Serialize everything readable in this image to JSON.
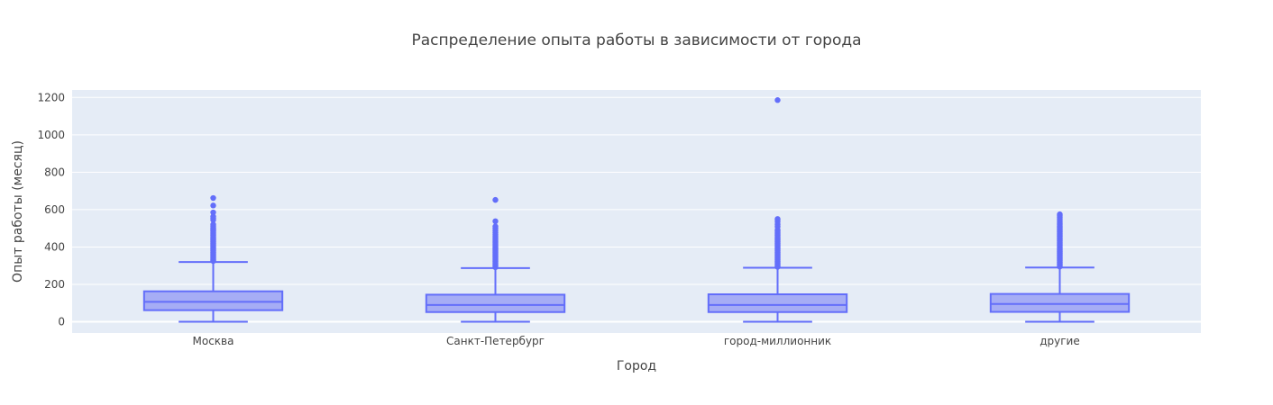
{
  "chart_data": {
    "type": "box",
    "title": "Распределение опыта работы в зависимости от города",
    "xlabel": "Город",
    "ylabel": "Опыт работы (месяц)",
    "ylim": [
      -60,
      1240
    ],
    "yticks": [
      0,
      200,
      400,
      600,
      800,
      1000,
      1200
    ],
    "grid": true,
    "colors": {
      "plot_bg": "#e5ecf6",
      "box_line": "#636efa",
      "box_fill": "#a6adf5",
      "text": "#444444",
      "grid": "#ffffff"
    },
    "categories": [
      "Москва",
      "Санкт-Петербург",
      "город-миллионник",
      "другие"
    ],
    "boxes": [
      {
        "category": "Москва",
        "min": 0,
        "q1": 62,
        "median": 107,
        "q3": 163,
        "upper_fence": 320,
        "outliers": [
          325,
          330,
          336,
          342,
          348,
          354,
          360,
          366,
          372,
          378,
          384,
          390,
          396,
          402,
          408,
          414,
          420,
          426,
          432,
          438,
          444,
          450,
          456,
          462,
          468,
          474,
          480,
          486,
          492,
          498,
          504,
          512,
          520,
          545,
          553,
          563,
          585,
          622,
          662
        ]
      },
      {
        "category": "Санкт-Петербург",
        "min": 0,
        "q1": 52,
        "median": 90,
        "q3": 145,
        "upper_fence": 287,
        "outliers": [
          292,
          298,
          304,
          310,
          316,
          322,
          328,
          334,
          340,
          346,
          352,
          358,
          364,
          370,
          376,
          382,
          388,
          394,
          400,
          408,
          416,
          424,
          432,
          440,
          448,
          458,
          466,
          476,
          488,
          500,
          510,
          538,
          652
        ]
      },
      {
        "category": "город-миллионник",
        "min": 0,
        "q1": 52,
        "median": 90,
        "q3": 147,
        "upper_fence": 289,
        "outliers": [
          294,
          300,
          306,
          312,
          318,
          324,
          330,
          336,
          342,
          348,
          354,
          360,
          366,
          372,
          378,
          384,
          390,
          396,
          402,
          408,
          414,
          420,
          426,
          432,
          438,
          444,
          450,
          456,
          462,
          468,
          474,
          480,
          486,
          492,
          508,
          520,
          535,
          545,
          550,
          1186
        ]
      },
      {
        "category": "другие",
        "min": 0,
        "q1": 53,
        "median": 95,
        "q3": 149,
        "upper_fence": 290,
        "outliers": [
          295,
          301,
          307,
          313,
          319,
          325,
          331,
          337,
          343,
          349,
          355,
          361,
          367,
          373,
          379,
          385,
          391,
          397,
          403,
          409,
          415,
          421,
          427,
          433,
          439,
          445,
          451,
          457,
          463,
          469,
          475,
          481,
          487,
          493,
          499,
          505,
          512,
          520,
          528,
          536,
          546,
          556,
          566,
          575
        ]
      }
    ]
  }
}
